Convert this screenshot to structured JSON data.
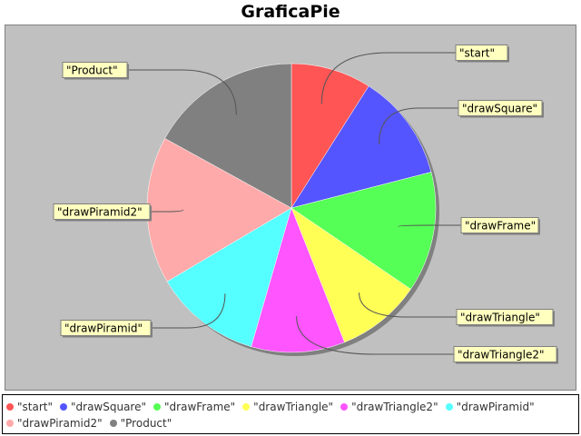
{
  "chart_data": {
    "type": "pie",
    "title": "GraficaPie",
    "slices": [
      {
        "label": "\"start\"",
        "value": 0.09,
        "color": "#ff5555"
      },
      {
        "label": "\"drawSquare\"",
        "value": 0.12,
        "color": "#5555ff"
      },
      {
        "label": "\"drawFrame\"",
        "value": 0.135,
        "color": "#55ff55"
      },
      {
        "label": "\"drawTriangle\"",
        "value": 0.095,
        "color": "#ffff55"
      },
      {
        "label": "\"drawTriangle2\"",
        "value": 0.105,
        "color": "#ff55ff"
      },
      {
        "label": "\"drawPiramid\"",
        "value": 0.12,
        "color": "#55ffff"
      },
      {
        "label": "\"drawPiramid2\"",
        "value": 0.165,
        "color": "#ffaaaa"
      },
      {
        "label": "\"Product\"",
        "value": 0.17,
        "color": "#808080"
      }
    ],
    "legend_position": "bottom",
    "background": "#c0c0c0"
  }
}
